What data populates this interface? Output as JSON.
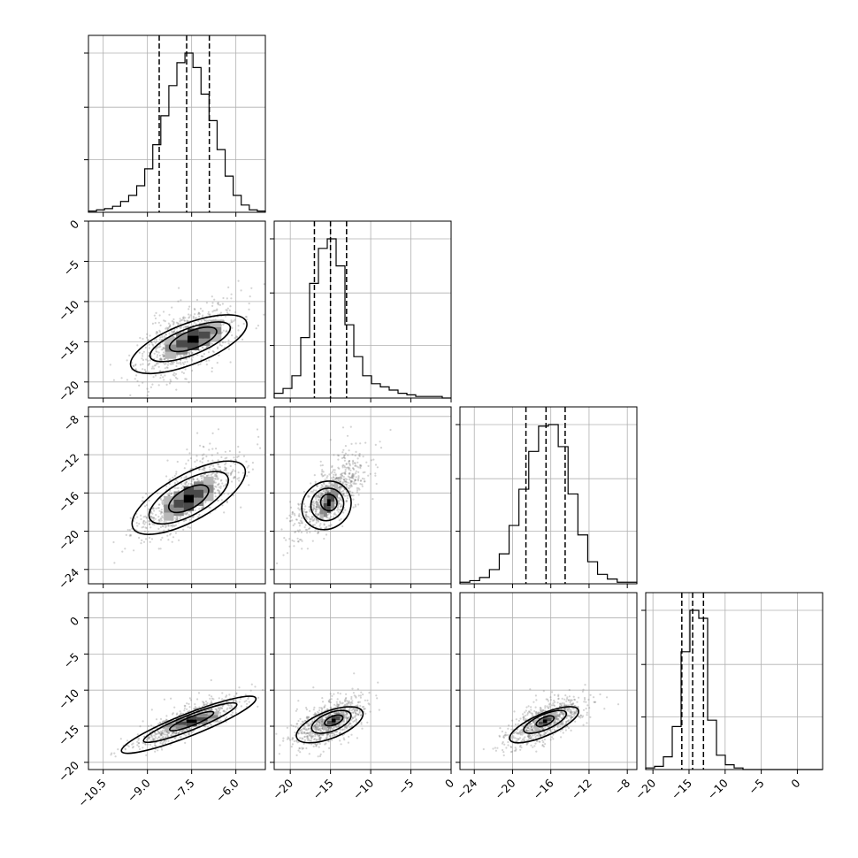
{
  "chart_data": {
    "type": "corner",
    "title": "",
    "style": {
      "grid": true,
      "hist_color": "#000000",
      "quantile_line": "dashed",
      "scatter_color": "#808080"
    },
    "variables": [
      {
        "index": 0,
        "range": [
          -11.0,
          -5.0
        ],
        "quantiles": [
          -8.6,
          -7.67,
          -6.9
        ],
        "ticks": [
          -10.5,
          -9.0,
          -7.5,
          -6.0
        ],
        "tick_labels": [
          "−10.5",
          "−9.0",
          "−7.5",
          "−6.0"
        ],
        "mean": -7.6,
        "std": 0.85
      },
      {
        "index": 1,
        "range": [
          -22.0,
          0.0
        ],
        "quantiles": [
          -17.0,
          -15.0,
          -13.0
        ],
        "ticks": [
          -20,
          -15,
          -10,
          -5,
          0
        ],
        "tick_labels": [
          "−20",
          "−15",
          "−10",
          "−5",
          "0"
        ],
        "mean": -15.0,
        "std": 2.2
      },
      {
        "index": 2,
        "range": [
          -25.5,
          -7.0
        ],
        "quantiles": [
          -18.6,
          -16.5,
          -14.5
        ],
        "ticks": [
          -24,
          -20,
          -16,
          -12,
          -8
        ],
        "tick_labels": [
          "−24",
          "−20",
          "−16",
          "−12",
          "−8"
        ],
        "mean": -16.5,
        "std": 2.0
      },
      {
        "index": 3,
        "range": [
          -21.0,
          3.5
        ],
        "quantiles": [
          -16.0,
          -14.5,
          -13.0
        ],
        "ticks": [
          -20,
          -15,
          -10,
          -5,
          0
        ],
        "tick_labels": [
          "−20",
          "−15",
          "−10",
          "−5",
          "0"
        ],
        "mean": -14.5,
        "std": 1.6
      }
    ],
    "histograms": {
      "var0": [
        1,
        2,
        3,
        5,
        9,
        14,
        22,
        36,
        56,
        80,
        105,
        124,
        132,
        120,
        98,
        76,
        52,
        30,
        14,
        6,
        2,
        1
      ],
      "var1": [
        3,
        6,
        14,
        38,
        72,
        94,
        100,
        83,
        46,
        26,
        14,
        9,
        7,
        5,
        3,
        2,
        1,
        1,
        1,
        0
      ],
      "var2": [
        1,
        2,
        4,
        9,
        19,
        37,
        60,
        84,
        100,
        101,
        87,
        57,
        31,
        14,
        6,
        3,
        1,
        1
      ],
      "var3": [
        1,
        2,
        8,
        27,
        74,
        100,
        95,
        31,
        9,
        3,
        1,
        0,
        0,
        0,
        0,
        0,
        0,
        0,
        0,
        0
      ]
    },
    "correlations": {
      "1-0": 0.55,
      "2-0": 0.72,
      "2-1": 0.78,
      "3-0": 0.86,
      "3-1": 0.6,
      "3-2": 0.72
    },
    "contours": {
      "1-0": [
        [
          -7.45,
          -14.7,
          0.85,
          2.0
        ],
        [
          -7.55,
          -15.0,
          1.45,
          3.0
        ],
        [
          -7.6,
          -15.3,
          2.1,
          4.6
        ]
      ],
      "2-0": [
        [
          -7.6,
          -16.6,
          0.75,
          1.9
        ],
        [
          -7.6,
          -16.5,
          1.5,
          3.3
        ],
        [
          -7.6,
          -16.5,
          2.15,
          4.4
        ]
      ],
      "2-1": [
        [
          -15.2,
          -17.0,
          1.0,
          1.6
        ],
        [
          -15.4,
          -17.2,
          2.1,
          3.0
        ],
        [
          -15.5,
          -17.3,
          3.2,
          4.4
        ]
      ],
      "3-0": [
        [
          -7.5,
          -14.3,
          0.8,
          1.1
        ],
        [
          -7.55,
          -14.5,
          1.7,
          1.9
        ],
        [
          -7.6,
          -14.8,
          2.45,
          2.8
        ]
      ],
      "3-1": [
        [
          -14.6,
          -14.2,
          1.2,
          1.1
        ],
        [
          -14.9,
          -14.4,
          2.6,
          2.3
        ],
        [
          -15.1,
          -14.8,
          4.4,
          3.4
        ]
      ],
      "3-2": [
        [
          -16.6,
          -14.3,
          1.0,
          1.0
        ],
        [
          -16.6,
          -14.4,
          2.4,
          1.9
        ],
        [
          -16.7,
          -14.8,
          3.9,
          2.8
        ]
      ]
    }
  }
}
